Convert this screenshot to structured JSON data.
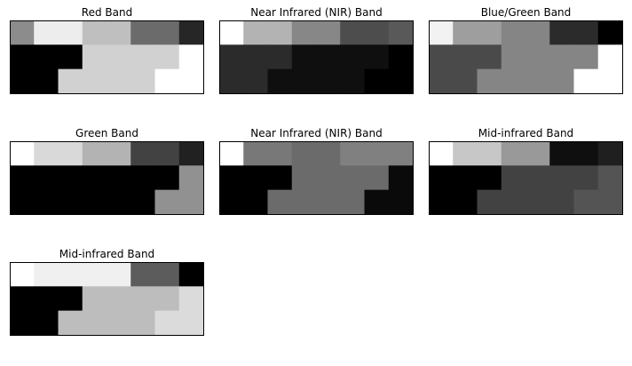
{
  "chart_data": [
    {
      "type": "heatmap",
      "title": "Red Band",
      "colormap": "gray",
      "grid": false,
      "axes_visible": false,
      "rows": [
        [
          0.55,
          0.93,
          0.93,
          0.75,
          0.75,
          0.42,
          0.42,
          0.15
        ],
        [
          0.0,
          0.0,
          0.0,
          0.82,
          0.82,
          0.82,
          0.82,
          1.0
        ],
        [
          0.0,
          0.0,
          0.82,
          0.82,
          0.82,
          0.82,
          1.0,
          1.0
        ]
      ]
    },
    {
      "type": "heatmap",
      "title": "Near Infrared (NIR) Band",
      "colormap": "gray",
      "grid": false,
      "axes_visible": false,
      "rows": [
        [
          1.0,
          0.7,
          0.7,
          0.53,
          0.53,
          0.3,
          0.3,
          0.35
        ],
        [
          0.17,
          0.17,
          0.17,
          0.06,
          0.06,
          0.06,
          0.06,
          0.0
        ],
        [
          0.17,
          0.17,
          0.06,
          0.06,
          0.06,
          0.06,
          0.0,
          0.0
        ]
      ]
    },
    {
      "type": "heatmap",
      "title": "Blue/Green Band",
      "colormap": "gray",
      "grid": false,
      "axes_visible": false,
      "rows": [
        [
          0.95,
          0.62,
          0.62,
          0.52,
          0.52,
          0.17,
          0.17,
          0.0
        ],
        [
          0.29,
          0.29,
          0.29,
          0.52,
          0.52,
          0.52,
          0.52,
          1.0
        ],
        [
          0.29,
          0.29,
          0.52,
          0.52,
          0.52,
          0.52,
          1.0,
          1.0
        ]
      ]
    },
    {
      "type": "heatmap",
      "title": "Green Band",
      "colormap": "gray",
      "grid": false,
      "axes_visible": false,
      "rows": [
        [
          1.0,
          0.85,
          0.85,
          0.7,
          0.7,
          0.26,
          0.26,
          0.13
        ],
        [
          0.0,
          0.0,
          0.0,
          0.0,
          0.0,
          0.0,
          0.0,
          0.57
        ],
        [
          0.0,
          0.0,
          0.0,
          0.0,
          0.0,
          0.0,
          0.57,
          0.57
        ]
      ]
    },
    {
      "type": "heatmap",
      "title": "Near Infrared (NIR) Band",
      "colormap": "gray",
      "grid": false,
      "axes_visible": false,
      "rows": [
        [
          1.0,
          0.47,
          0.47,
          0.42,
          0.42,
          0.5,
          0.5,
          0.5
        ],
        [
          0.0,
          0.0,
          0.0,
          0.42,
          0.42,
          0.42,
          0.42,
          0.04
        ],
        [
          0.0,
          0.0,
          0.42,
          0.42,
          0.42,
          0.42,
          0.04,
          0.04
        ]
      ]
    },
    {
      "type": "heatmap",
      "title": "Mid-infrared Band",
      "colormap": "gray",
      "grid": false,
      "axes_visible": false,
      "rows": [
        [
          1.0,
          0.78,
          0.78,
          0.6,
          0.6,
          0.06,
          0.06,
          0.12
        ],
        [
          0.0,
          0.0,
          0.0,
          0.26,
          0.26,
          0.26,
          0.26,
          0.33
        ],
        [
          0.0,
          0.0,
          0.26,
          0.26,
          0.26,
          0.26,
          0.33,
          0.33
        ]
      ]
    },
    {
      "type": "heatmap",
      "title": "Mid-infrared Band",
      "colormap": "gray",
      "grid": false,
      "axes_visible": false,
      "rows": [
        [
          1.0,
          0.94,
          0.94,
          0.94,
          0.94,
          0.36,
          0.36,
          0.0
        ],
        [
          0.0,
          0.0,
          0.0,
          0.74,
          0.74,
          0.74,
          0.74,
          0.86
        ],
        [
          0.0,
          0.0,
          0.74,
          0.74,
          0.74,
          0.74,
          0.86,
          0.86
        ]
      ]
    }
  ]
}
